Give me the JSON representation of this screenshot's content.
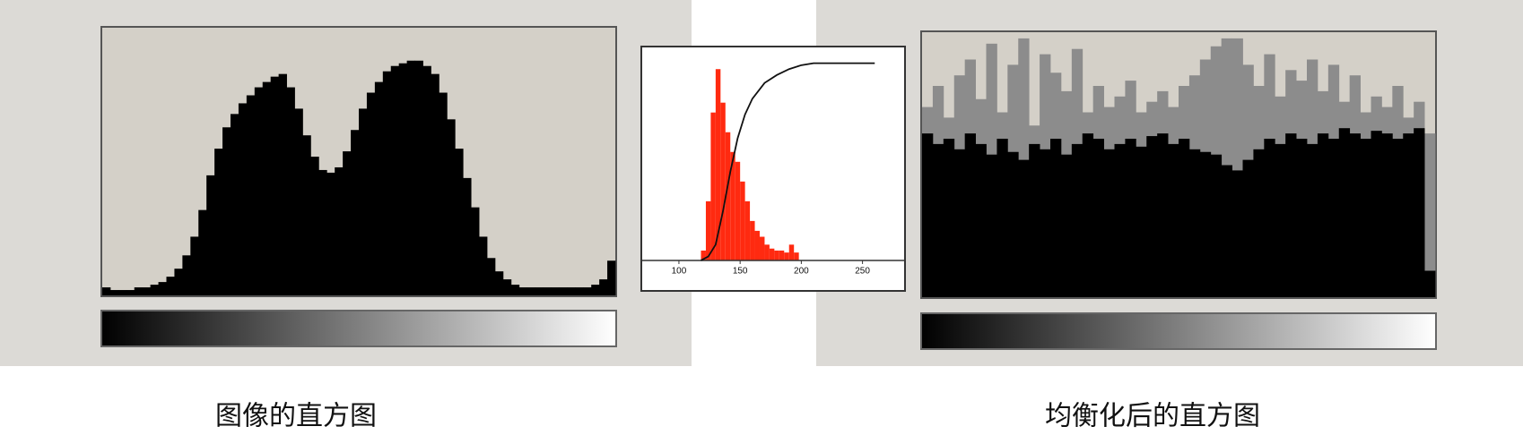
{
  "chart_data": [
    {
      "type": "bar",
      "title": "图像的直方图",
      "color": "#000000",
      "ylim": [
        0,
        100
      ],
      "values": [
        3,
        2,
        2,
        2,
        3,
        3,
        4,
        5,
        7,
        10,
        15,
        22,
        32,
        45,
        55,
        63,
        68,
        72,
        75,
        78,
        80,
        82,
        83,
        78,
        70,
        60,
        52,
        47,
        46,
        48,
        54,
        62,
        70,
        76,
        80,
        84,
        86,
        87,
        88,
        88,
        86,
        83,
        76,
        66,
        55,
        44,
        33,
        22,
        14,
        9,
        6,
        4,
        3,
        3,
        3,
        3,
        3,
        3,
        3,
        3,
        3,
        4,
        6,
        13
      ]
    },
    {
      "type": "histogram",
      "color": "#ff2a10",
      "xlim": [
        70,
        284
      ],
      "ylim": [
        -0.15,
        1.08
      ],
      "xticks": [
        100,
        150,
        200,
        250
      ],
      "bins": [
        118,
        122,
        126,
        130,
        134,
        138,
        142,
        146,
        150,
        154,
        158,
        162,
        166,
        170,
        174,
        178,
        182,
        186,
        190,
        194,
        198
      ],
      "values": [
        0.05,
        0.3,
        0.75,
        0.97,
        0.8,
        0.65,
        0.55,
        0.5,
        0.4,
        0.3,
        0.2,
        0.15,
        0.12,
        0.08,
        0.06,
        0.05,
        0.05,
        0.04,
        0.08,
        0.04
      ],
      "line": {
        "color": "#111111",
        "x": [
          118,
          124,
          130,
          136,
          142,
          148,
          154,
          160,
          170,
          180,
          190,
          200,
          210,
          220,
          240,
          260
        ],
        "values": [
          0,
          0.02,
          0.08,
          0.25,
          0.45,
          0.62,
          0.74,
          0.82,
          0.9,
          0.94,
          0.97,
          0.99,
          1,
          1,
          1,
          1
        ]
      }
    },
    {
      "type": "bar",
      "title": "均衡化后的直方图",
      "ylim": [
        0,
        100
      ],
      "series": [
        {
          "color": "#8c8c8c",
          "values": [
            72,
            80,
            68,
            84,
            90,
            75,
            96,
            70,
            88,
            98,
            65,
            92,
            85,
            78,
            94,
            70,
            80,
            72,
            76,
            82,
            70,
            74,
            78,
            72,
            80,
            84,
            90,
            95,
            98,
            98,
            88,
            80,
            92,
            76,
            86,
            82,
            90,
            78,
            88,
            74,
            84,
            70,
            76,
            72,
            80,
            68,
            74,
            62
          ]
        },
        {
          "color": "#000000",
          "values": [
            62,
            58,
            60,
            56,
            62,
            58,
            54,
            60,
            55,
            52,
            58,
            56,
            60,
            54,
            58,
            62,
            60,
            56,
            58,
            60,
            57,
            61,
            62,
            58,
            60,
            56,
            55,
            54,
            50,
            48,
            52,
            56,
            60,
            58,
            62,
            60,
            58,
            62,
            60,
            64,
            62,
            60,
            63,
            62,
            60,
            62,
            64,
            10
          ]
        }
      ]
    }
  ]
}
